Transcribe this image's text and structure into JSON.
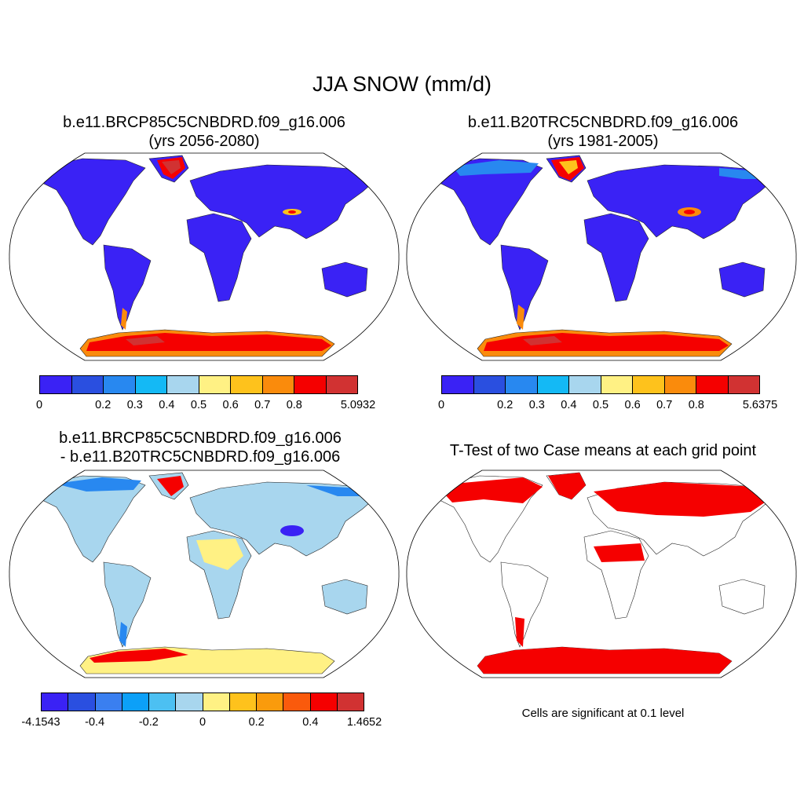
{
  "figure": {
    "title": "JJA SNOW (mm/d)"
  },
  "panels": [
    {
      "id": "p1",
      "title_line1": "b.e11.BRCP85C5CNBDRD.f09_g16.006",
      "title_line2": "(yrs 2056-2080)",
      "colorbar": {
        "colors": [
          "#3a22f5",
          "#2a4fe0",
          "#2888f0",
          "#14b9f5",
          "#a8d6ee",
          "#fff184",
          "#fec21c",
          "#fa8b0c",
          "#f50000",
          "#d13232"
        ],
        "labels": [
          "0",
          "0.2",
          "0.3",
          "0.4",
          "0.5",
          "0.6",
          "0.7",
          "0.8",
          "5.0932"
        ],
        "positions": [
          0,
          2,
          3,
          4,
          5,
          6,
          7,
          8,
          10
        ]
      }
    },
    {
      "id": "p2",
      "title_line1": "b.e11.B20TRC5CNBDRD.f09_g16.006",
      "title_line2": "(yrs 1981-2005)",
      "colorbar": {
        "colors": [
          "#3a22f5",
          "#2a4fe0",
          "#2888f0",
          "#14b9f5",
          "#a8d6ee",
          "#fff184",
          "#fec21c",
          "#fa8b0c",
          "#f50000",
          "#d13232"
        ],
        "labels": [
          "0",
          "0.2",
          "0.3",
          "0.4",
          "0.5",
          "0.6",
          "0.7",
          "0.8",
          "5.6375"
        ],
        "positions": [
          0,
          2,
          3,
          4,
          5,
          6,
          7,
          8,
          10
        ]
      }
    },
    {
      "id": "p3",
      "title_line1": "b.e11.BRCP85C5CNBDRD.f09_g16.006",
      "title_line2": "- b.e11.B20TRC5CNBDRD.f09_g16.006",
      "colorbar": {
        "colors": [
          "#3a22f5",
          "#2a4fe0",
          "#3a7ff0",
          "#0ca0f8",
          "#4cc0f2",
          "#a8d6ee",
          "#fff184",
          "#fec21c",
          "#fa9b0c",
          "#fa5a0c",
          "#f50000",
          "#d13232"
        ],
        "labels": [
          "-4.1543",
          "-0.4",
          "-0.2",
          "0",
          "0.2",
          "0.4",
          "1.4652"
        ],
        "positions": [
          0,
          2,
          4,
          6,
          8,
          10,
          12
        ]
      }
    },
    {
      "id": "p4",
      "title_line1": "T-Test of two Case means at each grid point",
      "note": "Cells are significant at 0.1 level"
    }
  ]
}
